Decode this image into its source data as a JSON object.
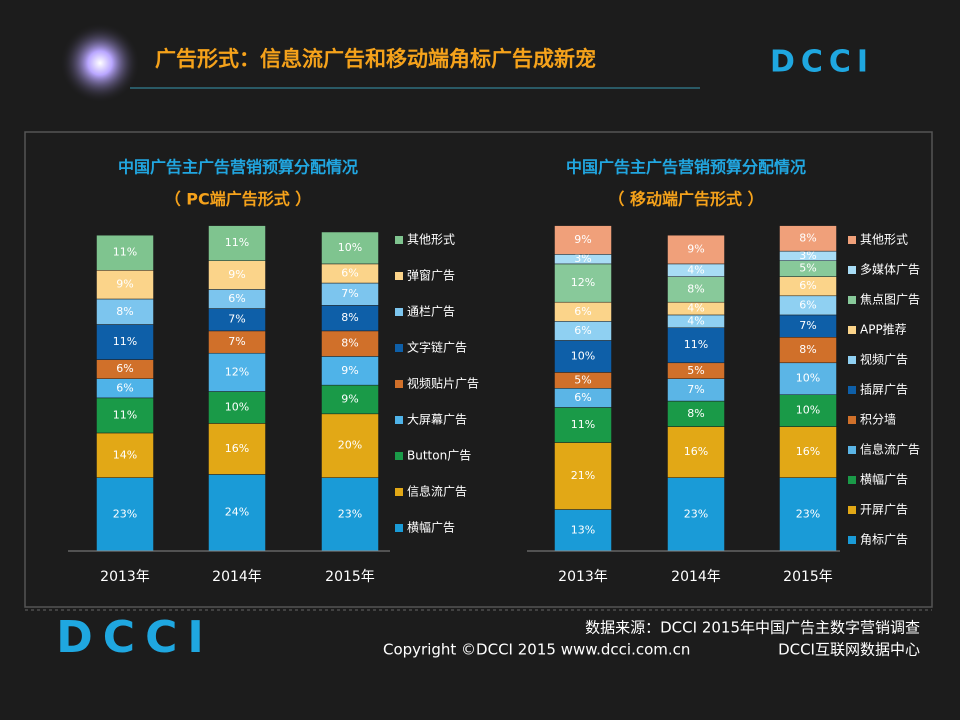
{
  "header": {
    "title": "广告形式：信息流广告和移动端角标广告成新宠",
    "logo": "DCCI"
  },
  "chart_data": [
    {
      "type": "stacked-bar",
      "title": "中国广告主广告营销预算分配情况",
      "subtitle": "（ PC端广告形式 ）",
      "categories": [
        "2013年",
        "2014年",
        "2015年"
      ],
      "series": [
        {
          "name": "横幅广告",
          "color": "#1a9bd7",
          "values": [
            23,
            24,
            23
          ],
          "value_labels": [
            "23%",
            "24%",
            "23%"
          ]
        },
        {
          "name": "信息流广告",
          "color": "#e2a816",
          "values": [
            14,
            16,
            20
          ],
          "value_labels": [
            "14%",
            "16%",
            "20%"
          ]
        },
        {
          "name": "Button广告",
          "color": "#1a9a48",
          "values": [
            11,
            10,
            9
          ],
          "value_labels": [
            "11%",
            "10%",
            "9%"
          ]
        },
        {
          "name": "大屏幕广告",
          "color": "#4fb3e8",
          "values": [
            6,
            12,
            9
          ],
          "value_labels": [
            "6%",
            "12%",
            "9%"
          ]
        },
        {
          "name": "视频贴片广告",
          "color": "#d0702a",
          "values": [
            6,
            7,
            8
          ],
          "value_labels": [
            "6%",
            "7%",
            "8%"
          ]
        },
        {
          "name": "文字链广告",
          "color": "#0e5fa8",
          "values": [
            11,
            7,
            8
          ],
          "value_labels": [
            "11%",
            "7%",
            "8%"
          ]
        },
        {
          "name": "通栏广告",
          "color": "#7cc5ee",
          "values": [
            8,
            6,
            7
          ],
          "value_labels": [
            "8%",
            "6%",
            "7%"
          ]
        },
        {
          "name": "弹窗广告",
          "color": "#fbd48a",
          "values": [
            9,
            9,
            6
          ],
          "value_labels": [
            "9%",
            "9%",
            "6%"
          ]
        },
        {
          "name": "其他形式",
          "color": "#7fc48f",
          "values": [
            11,
            11,
            10
          ],
          "value_labels": [
            "11%",
            "11%",
            "10%"
          ]
        }
      ]
    },
    {
      "type": "stacked-bar",
      "title": "中国广告主广告营销预算分配情况",
      "subtitle": "（ 移动端广告形式 ）",
      "categories": [
        "2013年",
        "2014年",
        "2015年"
      ],
      "series": [
        {
          "name": "角标广告",
          "color": "#1a9bd7",
          "values": [
            13,
            23,
            23
          ],
          "value_labels": [
            "13%",
            "23%",
            "23%"
          ]
        },
        {
          "name": "开屏广告",
          "color": "#e2a816",
          "values": [
            21,
            16,
            16
          ],
          "value_labels": [
            "21%",
            "16%",
            "16%"
          ]
        },
        {
          "name": "横幅广告",
          "color": "#1a9a48",
          "values": [
            11,
            8,
            10
          ],
          "value_labels": [
            "11%",
            "8%",
            "10%"
          ]
        },
        {
          "name": "信息流广告",
          "color": "#5bb5e6",
          "values": [
            6,
            7,
            10
          ],
          "value_labels": [
            "6%",
            "7%",
            "10%"
          ]
        },
        {
          "name": "积分墙",
          "color": "#d0702a",
          "values": [
            5,
            5,
            8
          ],
          "value_labels": [
            "5%",
            "5%",
            "8%"
          ]
        },
        {
          "name": "插屏广告",
          "color": "#0e5fa8",
          "values": [
            10,
            11,
            7
          ],
          "value_labels": [
            "10%",
            "11%",
            "7%"
          ]
        },
        {
          "name": "视频广告",
          "color": "#8fd0f2",
          "values": [
            6,
            4,
            6
          ],
          "value_labels": [
            "6%",
            "4%",
            "6%"
          ]
        },
        {
          "name": "APP推荐",
          "color": "#fbd48a",
          "values": [
            6,
            4,
            6
          ],
          "value_labels": [
            "6%",
            "4%",
            "6%"
          ]
        },
        {
          "name": "焦点图广告",
          "color": "#88c99a",
          "values": [
            12,
            8,
            5
          ],
          "value_labels": [
            "12%",
            "8%",
            "5%"
          ]
        },
        {
          "name": "多媒体广告",
          "color": "#a8dcf5",
          "values": [
            3,
            4,
            3
          ],
          "value_labels": [
            "3%",
            "4%",
            "3%"
          ]
        },
        {
          "name": "其他形式",
          "color": "#f0a07a",
          "values": [
            9,
            9,
            8
          ],
          "value_labels": [
            "9%",
            "9%",
            "8%"
          ]
        }
      ]
    }
  ],
  "footer": {
    "source": "数据来源：DCCI  2015年中国广告主数字营销调查",
    "copyright": "Copyright ©DCCI 2015 www.dcci.com.cn",
    "org": "DCCI互联网数据中心",
    "logo": "DCCI"
  }
}
